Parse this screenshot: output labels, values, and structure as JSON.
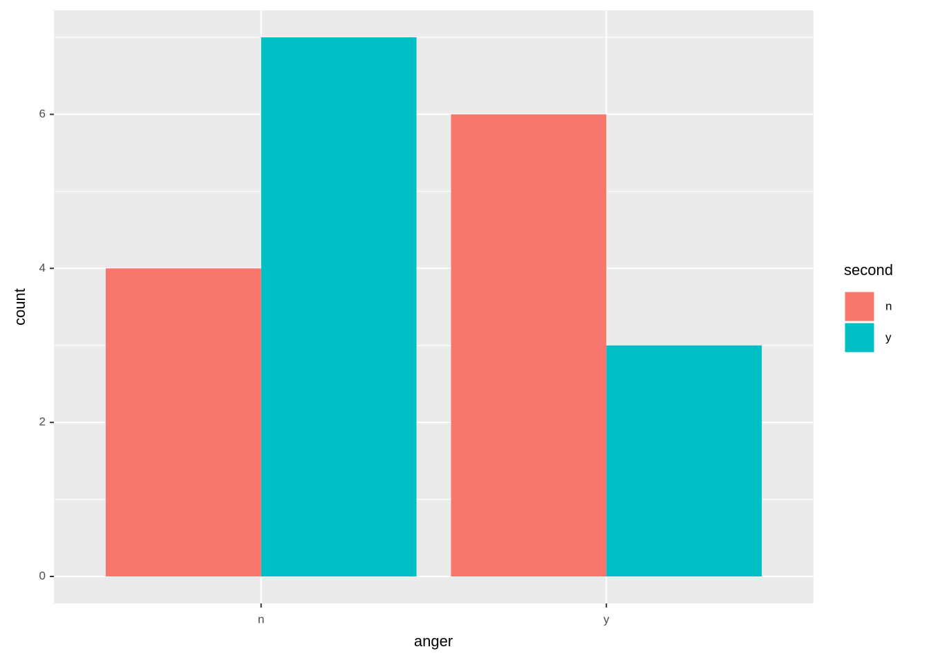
{
  "chart_data": {
    "type": "grouped_bar",
    "x_label": "anger",
    "y_label": "count",
    "legend_title": "second",
    "categories": [
      "n",
      "y"
    ],
    "series": [
      {
        "name": "n",
        "color": "#F8766D",
        "values": [
          4,
          6
        ]
      },
      {
        "name": "y",
        "color": "#00BFC4",
        "values": [
          7,
          3
        ]
      }
    ],
    "ylim": [
      -0.35,
      7.35
    ],
    "yticks": [
      0,
      2,
      4,
      6
    ],
    "grid": true,
    "legend": "right"
  }
}
